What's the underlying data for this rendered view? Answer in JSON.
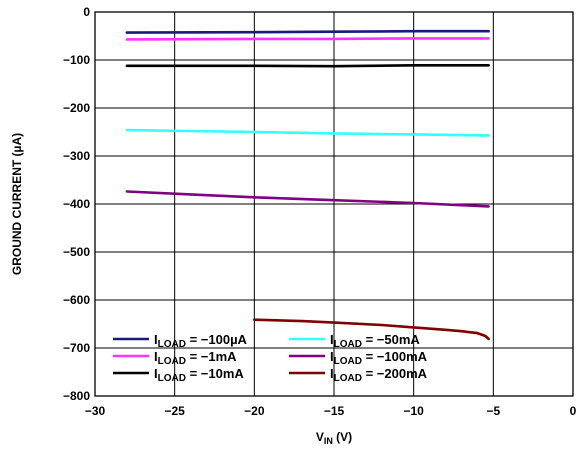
{
  "chart_data": {
    "type": "line",
    "xlabel": {
      "main": "V",
      "sub": "IN",
      "suffix": " (V)"
    },
    "ylabel": "GROUND CURRENT (µA)",
    "xlim": [
      -30,
      0
    ],
    "ylim": [
      -800,
      0
    ],
    "xticks": [
      -30,
      -25,
      -20,
      -15,
      -10,
      -5,
      0
    ],
    "yticks": [
      0,
      -100,
      -200,
      -300,
      -400,
      -500,
      -600,
      -700,
      -800
    ],
    "xtick_labels": [
      "−30",
      "−25",
      "−20",
      "−15",
      "−10",
      "−5",
      "0"
    ],
    "ytick_labels": [
      "0",
      "−100",
      "−200",
      "−300",
      "−400",
      "−500",
      "−600",
      "−700",
      "−800"
    ],
    "grid": true,
    "legend_position": "bottom-left",
    "series": [
      {
        "name": "I",
        "sub": "LOAD",
        "value_label": " = −100µA",
        "color": "#1a1a7a",
        "x": [
          -28,
          -20,
          -15,
          -10,
          -5.3
        ],
        "y": [
          -43,
          -42,
          -41,
          -40,
          -40
        ]
      },
      {
        "name": "I",
        "sub": "LOAD",
        "value_label": " = −1mA",
        "color": "#ff33ff",
        "x": [
          -28,
          -20,
          -15,
          -10,
          -5.3
        ],
        "y": [
          -57,
          -56,
          -56,
          -55,
          -55
        ]
      },
      {
        "name": "I",
        "sub": "LOAD",
        "value_label": " = −10mA",
        "color": "#000000",
        "x": [
          -28,
          -20,
          -15,
          -10,
          -5.3
        ],
        "y": [
          -112,
          -112,
          -113,
          -111,
          -111
        ]
      },
      {
        "name": "I",
        "sub": "LOAD",
        "value_label": " = −50mA",
        "color": "#33ffff",
        "x": [
          -28,
          -24,
          -20,
          -15,
          -10,
          -5.3
        ],
        "y": [
          -246,
          -248,
          -250,
          -253,
          -255,
          -257
        ]
      },
      {
        "name": "I",
        "sub": "LOAD",
        "value_label": " = −100mA",
        "color": "#800080",
        "x": [
          -28,
          -24,
          -20,
          -15,
          -10,
          -5.3
        ],
        "y": [
          -374,
          -380,
          -386,
          -392,
          -398,
          -405
        ]
      },
      {
        "name": "I",
        "sub": "LOAD",
        "value_label": " = −200mA",
        "color": "#800000",
        "x": [
          -20,
          -17,
          -15,
          -12,
          -10,
          -8,
          -7,
          -6.5,
          -6,
          -5.5,
          -5.3
        ],
        "y": [
          -641,
          -644,
          -647,
          -652,
          -657,
          -662,
          -665,
          -667,
          -669,
          -675,
          -681
        ]
      }
    ]
  }
}
